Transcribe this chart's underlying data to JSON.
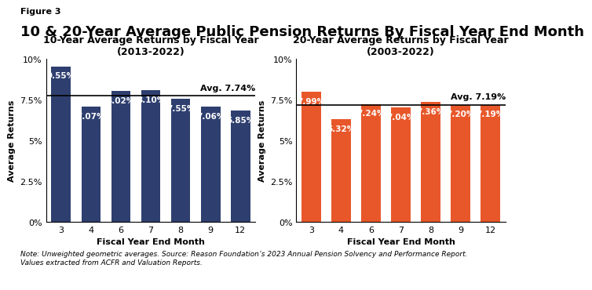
{
  "figure_label": "Figure 3",
  "title": "10 & 20-Year Average Public Pension Returns By Fiscal Year End Month",
  "left_chart": {
    "title_line1": "10-Year Average Returns by Fiscal Year",
    "title_line2": "(2013-2022)",
    "categories": [
      3,
      4,
      6,
      7,
      8,
      9,
      12
    ],
    "values": [
      9.55,
      7.07,
      8.02,
      8.1,
      7.55,
      7.06,
      6.85
    ],
    "bar_color": "#2E3F6F",
    "avg_value": 7.74,
    "avg_label": "Avg. 7.74%",
    "ylabel": "Average Returns",
    "xlabel": "Fiscal Year End Month",
    "ylim": [
      0,
      10
    ],
    "yticks": [
      0,
      2.5,
      5,
      7.5,
      10
    ],
    "yticklabels": [
      "0%",
      "2.5%",
      "5%",
      "7.5%",
      "10%"
    ]
  },
  "right_chart": {
    "title_line1": "20-Year Average Returns by Fiscal Year",
    "title_line2": "(2003-2022)",
    "categories": [
      3,
      4,
      6,
      7,
      8,
      9,
      12
    ],
    "values": [
      7.99,
      6.32,
      7.24,
      7.04,
      7.36,
      7.2,
      7.19
    ],
    "bar_color": "#E8572A",
    "avg_value": 7.19,
    "avg_label": "Avg. 7.19%",
    "ylabel": "Average Returns",
    "xlabel": "Fiscal Year End Month",
    "ylim": [
      0,
      10
    ],
    "yticks": [
      0,
      2.5,
      5,
      7.5,
      10
    ],
    "yticklabels": [
      "0%",
      "2.5%",
      "5%",
      "7.5%",
      "10%"
    ]
  },
  "note_text": "Note: Unweighted geometric averages. Source: Reason Foundation’s 2023 Annual Pension Solvency and Performance Report.\nValues extracted from ACFR and Valuation Reports.",
  "logo_bg_color": "#E8572A",
  "background_color": "#FFFFFF",
  "title_fontsize": 13,
  "subtitle_fontsize": 9,
  "bar_label_fontsize": 7.5,
  "axis_label_fontsize": 8,
  "tick_fontsize": 8,
  "note_fontsize": 6.5,
  "avg_fontsize": 8
}
